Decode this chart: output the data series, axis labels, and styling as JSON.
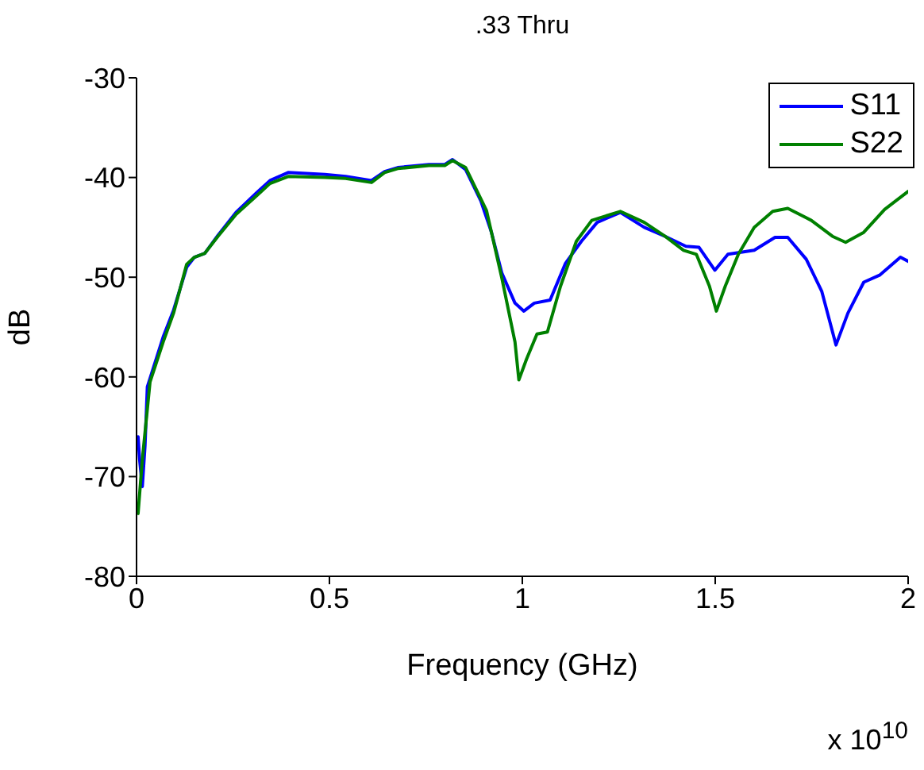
{
  "chart_data": {
    "type": "line",
    "title": ".33 Thru",
    "xlabel": "Frequency (GHz)",
    "ylabel": "dB",
    "annotations": [
      "x 10$^{10}$"
    ],
    "xlim": [
      0,
      2
    ],
    "xticks": [
      0,
      0.5,
      1,
      1.5,
      2
    ],
    "ylim": [
      -80,
      -30
    ],
    "yticks": [
      -80,
      -70,
      -60,
      -50,
      -40,
      -30
    ],
    "grid": false,
    "legend": "top right",
    "line_style": "solid",
    "marker": "none",
    "series": [
      {
        "name": "S11",
        "color": "#0000ff",
        "x": [
          0.004,
          0.008,
          0.015,
          0.022,
          0.028,
          0.069,
          0.096,
          0.13,
          0.15,
          0.177,
          0.211,
          0.258,
          0.312,
          0.346,
          0.393,
          0.488,
          0.542,
          0.609,
          0.643,
          0.677,
          0.758,
          0.799,
          0.819,
          0.853,
          0.893,
          0.92,
          0.947,
          0.981,
          1.004,
          1.031,
          1.072,
          1.112,
          1.153,
          1.194,
          1.254,
          1.316,
          1.37,
          1.424,
          1.458,
          1.499,
          1.533,
          1.601,
          1.655,
          1.688,
          1.736,
          1.776,
          1.813,
          1.844,
          1.885,
          1.926,
          1.98,
          2.0
        ],
        "values": [
          -66,
          -68.3,
          -71,
          -66.9,
          -61,
          -56,
          -53.3,
          -49,
          -48,
          -47.6,
          -45.8,
          -43.5,
          -41.5,
          -40.3,
          -39.5,
          -39.7,
          -39.9,
          -40.3,
          -39.4,
          -39,
          -38.7,
          -38.7,
          -38.2,
          -39.2,
          -42.4,
          -45.5,
          -49.6,
          -52.6,
          -53.4,
          -52.6,
          -52.3,
          -48.6,
          -46.4,
          -44.5,
          -43.5,
          -45,
          -45.9,
          -46.9,
          -47,
          -49.3,
          -47.7,
          -47.3,
          -46,
          -46,
          -48.2,
          -51.4,
          -56.8,
          -53.6,
          -50.5,
          -49.8,
          -48,
          -48.4
        ]
      },
      {
        "name": "S22",
        "color": "#008000",
        "x": [
          0.004,
          0.015,
          0.035,
          0.069,
          0.096,
          0.13,
          0.15,
          0.177,
          0.211,
          0.258,
          0.312,
          0.346,
          0.393,
          0.488,
          0.542,
          0.609,
          0.643,
          0.677,
          0.758,
          0.799,
          0.819,
          0.853,
          0.907,
          0.947,
          0.981,
          0.991,
          1.011,
          1.038,
          1.065,
          1.099,
          1.14,
          1.18,
          1.254,
          1.316,
          1.37,
          1.418,
          1.451,
          1.485,
          1.503,
          1.526,
          1.56,
          1.601,
          1.649,
          1.688,
          1.749,
          1.804,
          1.838,
          1.885,
          1.939,
          2.0
        ],
        "values": [
          -73.7,
          -68.3,
          -60.5,
          -56.5,
          -53.6,
          -48.7,
          -48,
          -47.6,
          -45.9,
          -43.7,
          -41.8,
          -40.6,
          -39.9,
          -40,
          -40.1,
          -40.5,
          -39.5,
          -39.1,
          -38.8,
          -38.8,
          -38.3,
          -39,
          -43.3,
          -50.1,
          -56.5,
          -60.3,
          -58.2,
          -55.7,
          -55.5,
          -50.9,
          -46.4,
          -44.3,
          -43.4,
          -44.5,
          -45.9,
          -47.3,
          -47.7,
          -50.9,
          -53.4,
          -50.9,
          -47.7,
          -45,
          -43.4,
          -43.1,
          -44.3,
          -45.9,
          -46.5,
          -45.5,
          -43.2,
          -41.4
        ]
      }
    ]
  }
}
